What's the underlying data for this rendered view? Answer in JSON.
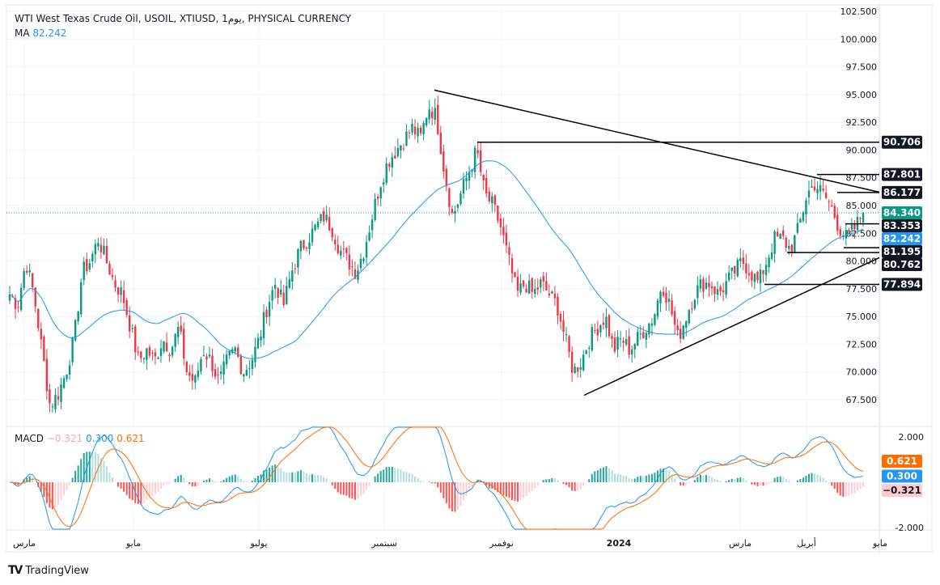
{
  "header": {
    "title": "WTI West Texas Crude Oil, USOIL, XTIUSD, 1يوم, PHYSICAL CURRENCY",
    "ma_label": "MA",
    "ma_value": "82.242"
  },
  "macd": {
    "label": "MACD",
    "hist": "−0.321",
    "macd": "0.300",
    "signal": "0.621"
  },
  "brand": "TradingView",
  "colors": {
    "up": "#089981",
    "down": "#f23645",
    "ma": "#2196f3",
    "signal": "#ff6d00",
    "macd": "#2196f3",
    "label_bg": "#131722"
  },
  "chart_data": {
    "type": "candlestick",
    "price_axis": {
      "ylim": [
        67.5,
        102.5
      ],
      "ticks": [
        "102.500",
        "100.000",
        "97.500",
        "95.000",
        "92.500",
        "90.000",
        "87.500",
        "85.000",
        "82.500",
        "80.000",
        "77.500",
        "75.000",
        "72.500",
        "70.000",
        "67.500"
      ]
    },
    "macd_axis": {
      "ticks": [
        "2.000",
        "-2.000"
      ]
    },
    "x_ticks": [
      "مارس",
      "مايو",
      "يوليو",
      "سبتمبر",
      "نوفمبر",
      "2024",
      "مارس",
      "أبريل",
      "مايو"
    ],
    "weekly_closes": [
      77,
      76,
      80,
      77,
      72,
      67,
      68,
      70,
      73,
      79,
      80,
      82,
      80,
      78,
      77,
      74,
      71,
      72,
      71,
      73,
      72,
      74,
      70,
      69,
      72,
      71,
      69,
      71,
      72,
      70,
      71,
      73,
      76,
      78,
      76,
      79,
      81,
      82,
      83,
      84,
      83,
      81,
      80,
      79,
      81,
      84,
      87,
      89,
      90,
      91,
      92,
      91,
      94,
      93,
      88,
      84,
      86,
      88,
      90,
      86,
      85,
      83,
      80,
      77,
      78,
      77,
      78,
      77,
      76,
      73,
      70,
      71,
      73,
      74,
      75,
      72,
      73,
      72,
      73,
      74,
      75,
      78,
      76,
      73,
      75,
      77,
      78,
      78,
      77,
      78,
      79,
      80,
      79,
      78,
      80,
      82,
      82,
      81,
      83,
      86,
      87,
      86,
      85,
      83,
      82,
      83,
      84.34
    ],
    "last_price": "84.340",
    "ma_value": "82.242",
    "levels": [
      {
        "label": "90.706",
        "price": 90.706
      },
      {
        "label": "87.801",
        "price": 87.801
      },
      {
        "label": "86.177",
        "price": 86.177
      },
      {
        "label": "83.353",
        "price": 83.353
      },
      {
        "label": "81.195",
        "price": 81.195
      },
      {
        "label": "80.762",
        "price": 80.762
      },
      {
        "label": "77.894",
        "price": 77.894
      }
    ],
    "trendlines": [
      {
        "from": 95.4,
        "to": 86.2
      },
      {
        "from": 67.9,
        "to": 80.3
      }
    ]
  }
}
